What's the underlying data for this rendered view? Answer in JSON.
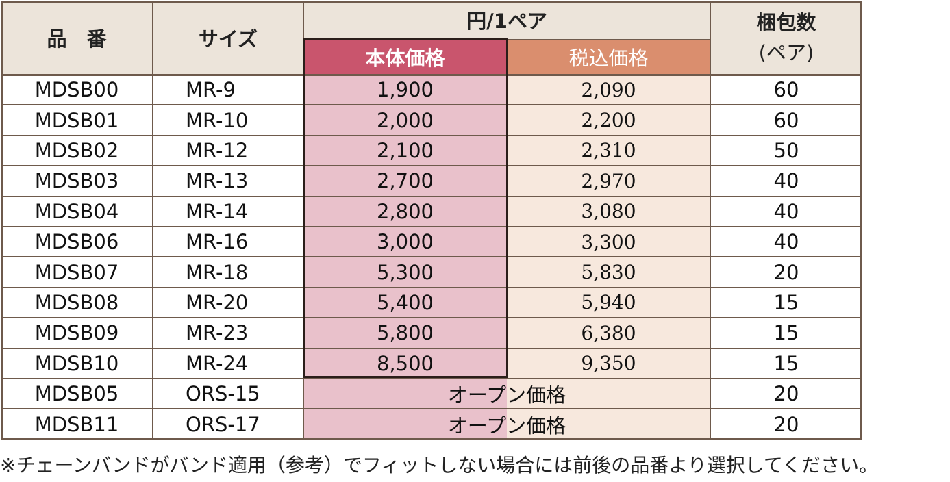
{
  "headers": {
    "part_no": "品　番",
    "size": "サイズ",
    "price_group": "円/1ペア",
    "base_price": "本体価格",
    "tax_price": "税込価格",
    "pack_line1": "梱包数",
    "pack_line2": "(ペア)"
  },
  "rows": [
    {
      "part": "MDSB00",
      "size": "MR-9",
      "base": "1,900",
      "tax": "2,090",
      "pack": "60"
    },
    {
      "part": "MDSB01",
      "size": "MR-10",
      "base": "2,000",
      "tax": "2,200",
      "pack": "60"
    },
    {
      "part": "MDSB02",
      "size": "MR-12",
      "base": "2,100",
      "tax": "2,310",
      "pack": "50"
    },
    {
      "part": "MDSB03",
      "size": "MR-13",
      "base": "2,700",
      "tax": "2,970",
      "pack": "40"
    },
    {
      "part": "MDSB04",
      "size": "MR-14",
      "base": "2,800",
      "tax": "3,080",
      "pack": "40"
    },
    {
      "part": "MDSB06",
      "size": "MR-16",
      "base": "3,000",
      "tax": "3,300",
      "pack": "40"
    },
    {
      "part": "MDSB07",
      "size": "MR-18",
      "base": "5,300",
      "tax": "5,830",
      "pack": "20"
    },
    {
      "part": "MDSB08",
      "size": "MR-20",
      "base": "5,400",
      "tax": "5,940",
      "pack": "15"
    },
    {
      "part": "MDSB09",
      "size": "MR-23",
      "base": "5,800",
      "tax": "6,380",
      "pack": "15"
    },
    {
      "part": "MDSB10",
      "size": "MR-24",
      "base": "8,500",
      "tax": "9,350",
      "pack": "15"
    }
  ],
  "open_rows": [
    {
      "part": "MDSB05",
      "size": "ORS-15",
      "price": "オープン価格",
      "pack": "20"
    },
    {
      "part": "MDSB11",
      "size": "ORS-17",
      "price": "オープン価格",
      "pack": "20"
    }
  ],
  "note": "※チェーンバンドがバンド適用（参考）でフィットしない場合には前後の品番より選択してください。",
  "colors": {
    "header_bg": "#ece4da",
    "base_header_bg": "#c9556d",
    "tax_header_bg": "#da8e6e",
    "base_col_bg": "#e9c1cb",
    "tax_col_bg": "#f7e8dd"
  }
}
